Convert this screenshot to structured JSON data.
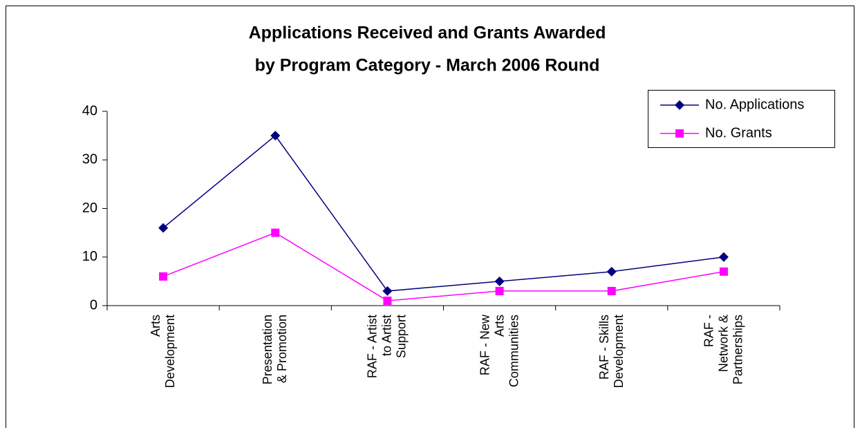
{
  "chart_data": {
    "type": "line",
    "title": [
      "Applications Received and Grants Awarded",
      "by Program Category - March 2006 Round"
    ],
    "categories": [
      "Arts\nDevelopment",
      "Presentation\n& Promotion",
      "RAF - Artist\nto Artist\nSupport",
      "RAF - New\nArts\nCommunities",
      "RAF - Skills\nDevelopment",
      "RAF -\nNetwork &\nPartnerships"
    ],
    "series": [
      {
        "name": "No. Applications",
        "color": "#000080",
        "marker": "diamond",
        "values": [
          16,
          35,
          3,
          5,
          7,
          10
        ]
      },
      {
        "name": "No. Grants",
        "color": "#ff00ff",
        "marker": "square",
        "values": [
          6,
          15,
          1,
          3,
          3,
          7
        ]
      }
    ],
    "ylim": [
      0,
      40
    ],
    "yticks": [
      0,
      10,
      20,
      30,
      40
    ],
    "grid": false,
    "legend": "top-right"
  }
}
